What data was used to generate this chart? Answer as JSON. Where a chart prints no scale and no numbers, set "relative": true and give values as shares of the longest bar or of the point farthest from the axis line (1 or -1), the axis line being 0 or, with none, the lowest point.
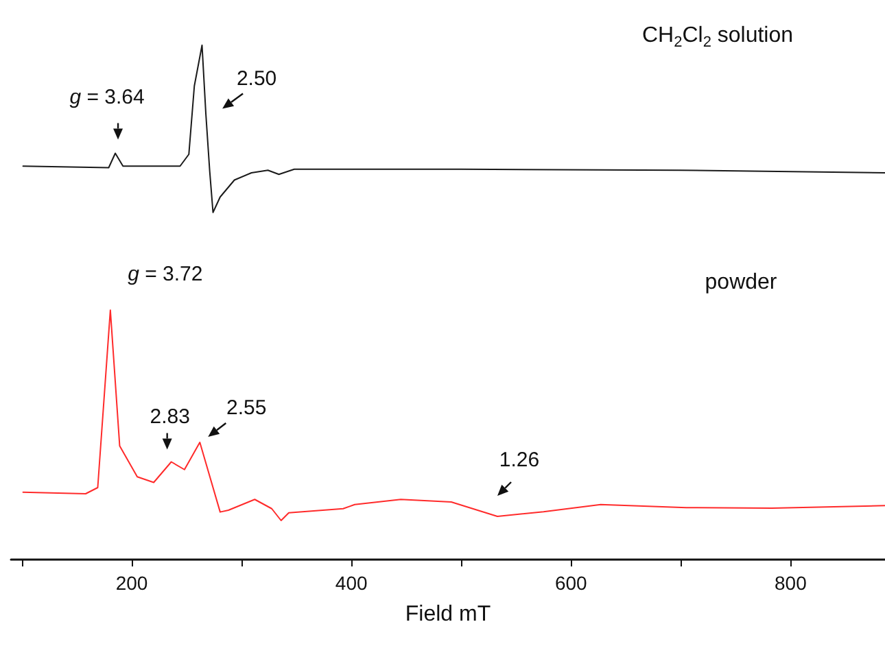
{
  "chart_data": {
    "type": "line",
    "relative": true,
    "xlabel": "Field mT",
    "xlim": [
      90,
      886
    ],
    "xticks": [
      {
        "value": 100,
        "label": null
      },
      200,
      {
        "value": 300,
        "label": null
      },
      400,
      {
        "value": 500,
        "label": null
      },
      600,
      {
        "value": 700,
        "label": null
      },
      800
    ],
    "series": [
      {
        "color": "#1a1a1a",
        "x": [
          101,
          179,
          185,
          192,
          244,
          252,
          257,
          264,
          267.5,
          271,
          274,
          280.5,
          293.5,
          309,
          324,
          334,
          348,
          500,
          700,
          886
        ],
        "values": [
          0.765,
          0.762,
          0.79,
          0.765,
          0.765,
          0.788,
          0.921,
          1.0,
          0.866,
          0.755,
          0.675,
          0.705,
          0.738,
          0.752,
          0.757,
          0.749,
          0.759,
          0.759,
          0.757,
          0.752
        ]
      },
      {
        "color": "#ff2a2a",
        "x": [
          101,
          158,
          169,
          180.5,
          189,
          205,
          220,
          236,
          248,
          262,
          280.5,
          288,
          312,
          327.5,
          336,
          343,
          392.5,
          403,
          445,
          491,
          533,
          575,
          627,
          705,
          783,
          886
        ],
        "values": [
          0.131,
          0.128,
          0.14,
          0.485,
          0.221,
          0.161,
          0.15,
          0.19,
          0.175,
          0.228,
          0.0925,
          0.096,
          0.117,
          0.099,
          0.076,
          0.091,
          0.099,
          0.107,
          0.117,
          0.112,
          0.084,
          0.093,
          0.107,
          0.101,
          0.1,
          0.105
        ]
      }
    ],
    "annotations": [
      {
        "text": "g = 3.64",
        "x": 185,
        "y": 0.79
      },
      {
        "text": "2.50",
        "x": 267.5,
        "y": 0.866
      },
      {
        "text": "g = 3.72",
        "x": 180.5,
        "y": 0.485
      },
      {
        "text": "2.83",
        "x": 236,
        "y": 0.19
      },
      {
        "text": "2.55",
        "x": 262,
        "y": 0.228
      },
      {
        "text": "1.26",
        "x": 533,
        "y": 0.084
      },
      "CH$_{2}$Cl$_{2}$ solution",
      "powder"
    ]
  }
}
